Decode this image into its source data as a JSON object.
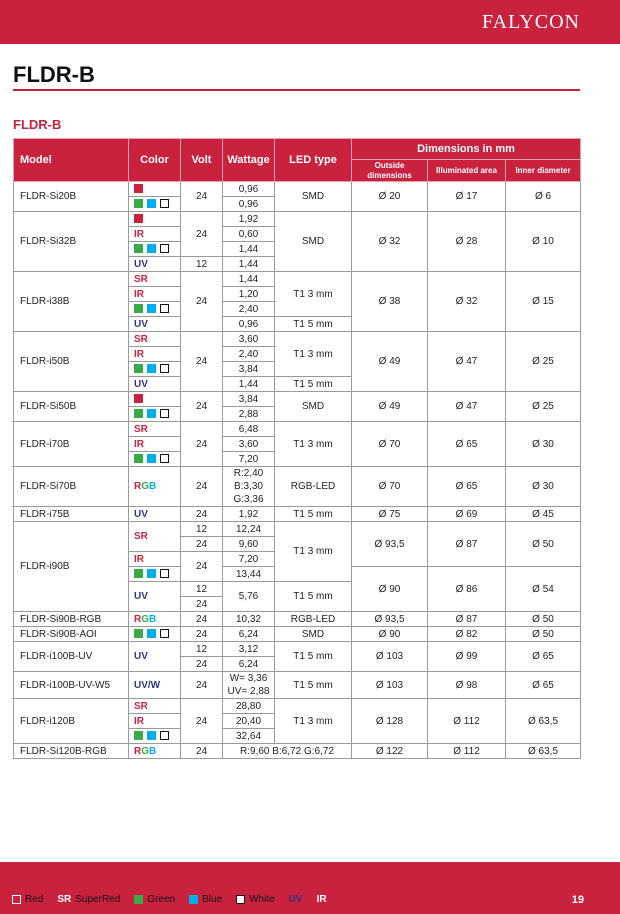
{
  "header": {
    "logo": "FALYCON"
  },
  "page_title": "FLDR-B",
  "section_title": "FLDR-B",
  "colors": {
    "brand": "#c8223f",
    "red": "#c8223f",
    "green": "#3aaa48",
    "blue": "#00aeef",
    "uv": "#2e3583"
  },
  "table": {
    "headers": {
      "model": "Model",
      "color": "Color",
      "volt": "Volt",
      "wattage": "Wattage",
      "led_type": "LED type",
      "dimensions": "Dimensions in mm",
      "outside": "Outside dimensions",
      "illuminated": "Illuminated area",
      "inner": "Inner diameter"
    },
    "groups": [
      {
        "rows": [
          {
            "model": [
              "FLDR-Si20B",
              2
            ],
            "color": "red",
            "volt": [
              "24",
              2
            ],
            "watt": "0,96",
            "led": [
              "SMD",
              2
            ],
            "od": [
              "Ø 20",
              2
            ],
            "ia": [
              "Ø 17",
              2
            ],
            "id": [
              "Ø 6",
              2
            ]
          },
          {
            "color": "gbw",
            "watt": "0,96"
          }
        ]
      },
      {
        "rows": [
          {
            "model": [
              "FLDR-Si32B",
              4
            ],
            "color": "red",
            "volt": [
              "24",
              3
            ],
            "watt": "1,92",
            "led": [
              "SMD",
              4
            ],
            "od": [
              "Ø 32",
              4
            ],
            "ia": [
              "Ø 28",
              4
            ],
            "id": [
              "Ø 10",
              4
            ]
          },
          {
            "color": "IR",
            "watt": "0,60"
          },
          {
            "color": "gbw",
            "watt": "1,44"
          },
          {
            "color": "UV",
            "volt": "12",
            "watt": "1,44"
          }
        ]
      },
      {
        "rows": [
          {
            "model": [
              "FLDR-i38B",
              4
            ],
            "color": "SR",
            "volt": [
              "24",
              4
            ],
            "watt": "1,44",
            "led": [
              "T1 3 mm",
              3
            ],
            "od": [
              "Ø 38",
              4
            ],
            "ia": [
              "Ø 32",
              4
            ],
            "id": [
              "Ø 15",
              4
            ]
          },
          {
            "color": "IR",
            "watt": "1,20"
          },
          {
            "color": "gbw",
            "watt": "2,40"
          },
          {
            "color": "UV",
            "watt": "0,96",
            "led": "T1 5 mm"
          }
        ]
      },
      {
        "rows": [
          {
            "model": [
              "FLDR-i50B",
              4
            ],
            "color": "SR",
            "volt": [
              "24",
              4
            ],
            "watt": "3,60",
            "led": [
              "T1 3 mm",
              3
            ],
            "od": [
              "Ø 49",
              4
            ],
            "ia": [
              "Ø 47",
              4
            ],
            "id": [
              "Ø 25",
              4
            ]
          },
          {
            "color": "IR",
            "watt": "2,40"
          },
          {
            "color": "gbw",
            "watt": "3,84"
          },
          {
            "color": "UV",
            "watt": "1,44",
            "led": "T1 5 mm"
          }
        ]
      },
      {
        "rows": [
          {
            "model": [
              "FLDR-Si50B",
              2
            ],
            "color": "red",
            "volt": [
              "24",
              2
            ],
            "watt": "3,84",
            "led": [
              "SMD",
              2
            ],
            "od": [
              "Ø 49",
              2
            ],
            "ia": [
              "Ø 47",
              2
            ],
            "id": [
              "Ø 25",
              2
            ]
          },
          {
            "color": "gbw",
            "watt": "2,88"
          }
        ]
      },
      {
        "rows": [
          {
            "model": [
              "FLDR-i70B",
              3
            ],
            "color": "SR",
            "volt": [
              "24",
              3
            ],
            "watt": "6,48",
            "led": [
              "T1 3 mm",
              3
            ],
            "od": [
              "Ø 70",
              3
            ],
            "ia": [
              "Ø 65",
              3
            ],
            "id": [
              "Ø 30",
              3
            ]
          },
          {
            "color": "IR",
            "watt": "3,60"
          },
          {
            "color": "gbw",
            "watt": "7,20"
          }
        ]
      },
      {
        "rows": [
          {
            "model": "FLDR-Si70B",
            "color": "RGB",
            "volt": "24",
            "watt": "R:2,40\nB:3,30\nG:3,36",
            "led": "RGB-LED",
            "od": "Ø 70",
            "ia": "Ø 65",
            "id": "Ø 30"
          }
        ]
      },
      {
        "rows": [
          {
            "model": "FLDR-i75B",
            "color": "UV",
            "volt": "24",
            "watt": "1,92",
            "led": "T1 5 mm",
            "od": "Ø 75",
            "ia": "Ø 69",
            "id": "Ø 45"
          }
        ]
      },
      {
        "rows": [
          {
            "model": [
              "FLDR-i90B",
              6
            ],
            "color": [
              "SR",
              2
            ],
            "volt": "12",
            "watt": "12,24",
            "led": [
              "T1 3 mm",
              4
            ],
            "od": [
              "Ø 93,5",
              3
            ],
            "ia": [
              "Ø 87",
              3
            ],
            "id": [
              "Ø 50",
              3
            ]
          },
          {
            "volt": "24",
            "watt": "9,60"
          },
          {
            "color": "IR",
            "volt": [
              "24",
              2
            ],
            "watt": "7,20"
          },
          {
            "color": "gbw",
            "watt": "13,44",
            "od": [
              "Ø 90",
              3
            ],
            "ia": [
              "Ø 86",
              3
            ],
            "id": [
              "Ø 54",
              3
            ]
          },
          {
            "color": [
              "UV",
              2
            ],
            "volt": "12",
            "watt": [
              "5,76",
              2
            ],
            "led": [
              "T1 5 mm",
              2
            ]
          },
          {
            "volt": "24"
          }
        ]
      },
      {
        "rows": [
          {
            "model": "FLDR-Si90B-RGB",
            "color": "RGB",
            "volt": "24",
            "watt": "10,32",
            "led": "RGB-LED",
            "od": "Ø 93,5",
            "ia": "Ø 87",
            "id": "Ø 50"
          }
        ]
      },
      {
        "rows": [
          {
            "model": "FLDR-Si90B-AOI",
            "color": "gbw",
            "volt": "24",
            "watt": "6,24",
            "led": "SMD",
            "od": "Ø 90",
            "ia": "Ø 82",
            "id": "Ø 50"
          }
        ]
      },
      {
        "rows": [
          {
            "model": [
              "FLDR-i100B-UV",
              2
            ],
            "color": [
              "UV",
              2
            ],
            "volt": "12",
            "watt": "3,12",
            "led": [
              "T1 5 mm",
              2
            ],
            "od": [
              "Ø 103",
              2
            ],
            "ia": [
              "Ø 99",
              2
            ],
            "id": [
              "Ø 65",
              2
            ]
          },
          {
            "volt": "24",
            "watt": "6,24"
          }
        ]
      },
      {
        "rows": [
          {
            "model": "FLDR-i100B-UV-W5",
            "color": "UV/W",
            "volt": "24",
            "watt": "W= 3,36\nUV= 2,88",
            "led": "T1 5 mm",
            "od": "Ø 103",
            "ia": "Ø 98",
            "id": "Ø 65"
          }
        ]
      },
      {
        "rows": [
          {
            "model": [
              "FLDR-i120B",
              3
            ],
            "color": "SR",
            "volt": [
              "24",
              3
            ],
            "watt": "28,80",
            "led": [
              "T1 3 mm",
              3
            ],
            "od": [
              "Ø 128",
              3
            ],
            "ia": [
              "Ø 112",
              3
            ],
            "id": [
              "Ø 63,5",
              3
            ]
          },
          {
            "color": "IR",
            "watt": "20,40"
          },
          {
            "color": "gbw",
            "watt": "32,64"
          }
        ]
      },
      {
        "rows": [
          {
            "model": "FLDR-Si120B-RGB",
            "color": "RGB",
            "volt": "24",
            "watt_led": "R:9,60 B:6,72 G:6,72",
            "od": "Ø 122",
            "ia": "Ø 112",
            "id": "Ø 63,5"
          }
        ]
      }
    ]
  },
  "legend": [
    {
      "swatch": "red-outline",
      "label": "Red"
    },
    {
      "code": "SR",
      "label": "SuperRed"
    },
    {
      "swatch": "green",
      "label": "Green"
    },
    {
      "swatch": "blue",
      "label": "Blue"
    },
    {
      "swatch": "white",
      "label": "White"
    },
    {
      "code": "UV",
      "label": ""
    },
    {
      "code": "IR",
      "label": ""
    }
  ],
  "page_number": "19"
}
